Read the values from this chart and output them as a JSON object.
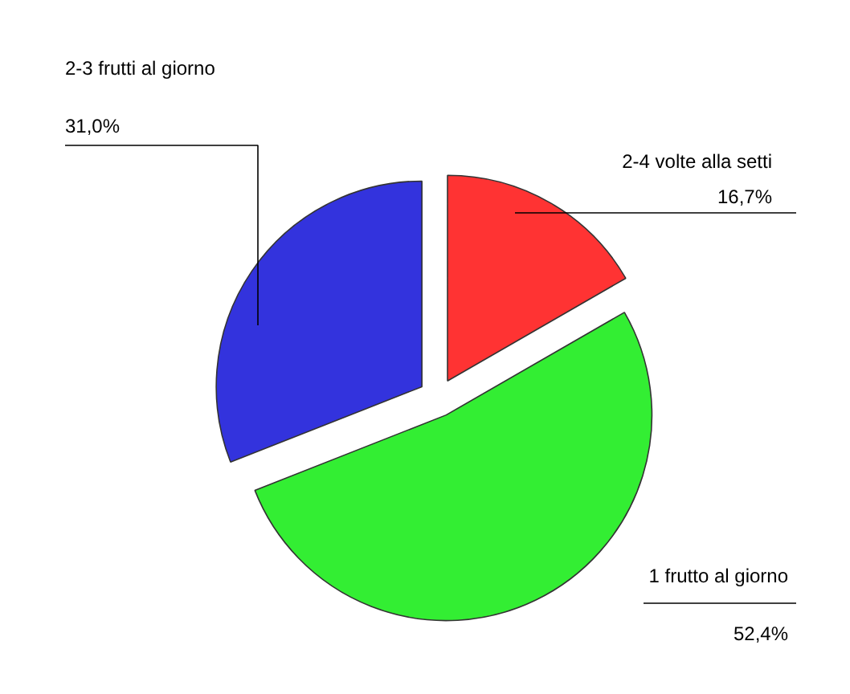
{
  "chart_data": {
    "type": "pie",
    "categories": [
      "2-4 volte alla setti",
      "1 frutto al giorno",
      "2-3 frutti al giorno"
    ],
    "values": [
      16.7,
      52.4,
      31.0
    ],
    "colors": [
      "#ff3333",
      "#33ee33",
      "#3333dd"
    ],
    "value_labels": [
      "16,7%",
      "52,4%",
      "31,0%"
    ]
  }
}
